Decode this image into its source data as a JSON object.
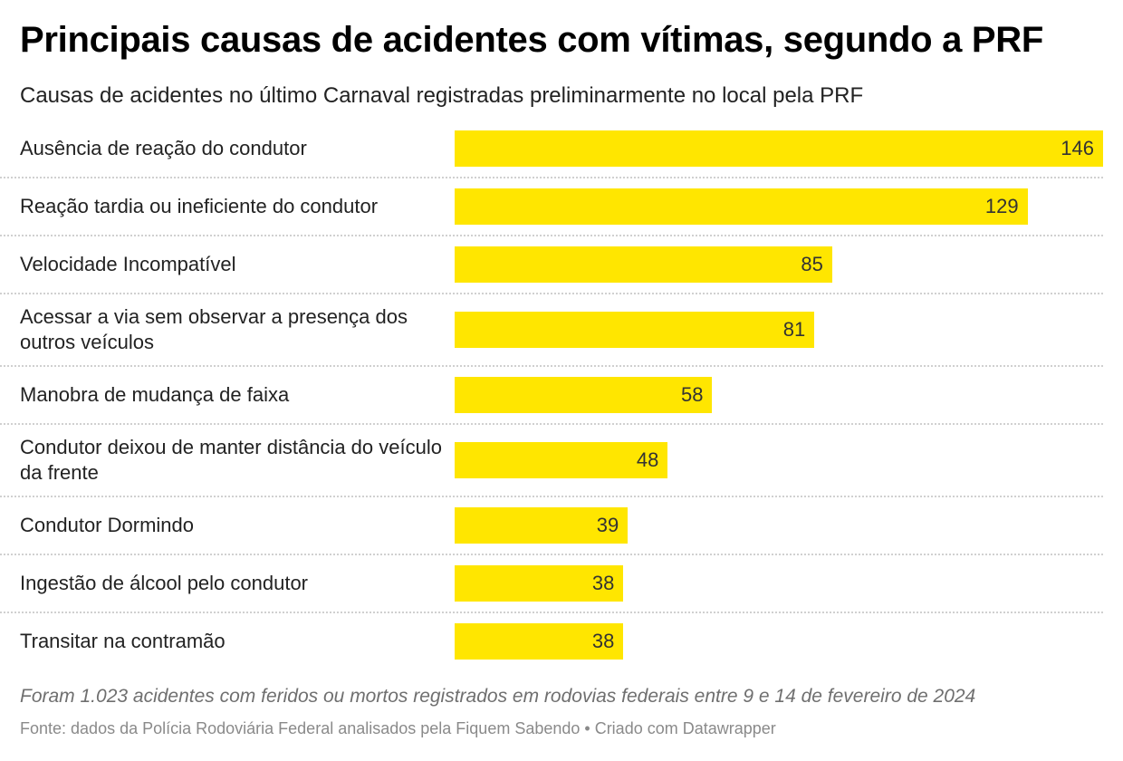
{
  "chart_data": {
    "type": "bar",
    "orientation": "horizontal",
    "title": "Principais causas de acidentes com vítimas, segundo a PRF",
    "subtitle": "Causas de acidentes no último Carnaval registradas preliminarmente no local pela PRF",
    "categories": [
      "Ausência de reação do condutor",
      "Reação tardia ou ineficiente do condutor",
      "Velocidade Incompatível",
      "Acessar a via sem observar a presença dos outros veículos",
      "Manobra de mudança de faixa",
      "Condutor deixou de manter distância do veículo da frente",
      "Condutor Dormindo",
      "Ingestão de álcool pelo condutor",
      "Transitar na contramão"
    ],
    "values": [
      146,
      129,
      85,
      81,
      58,
      48,
      39,
      38,
      38
    ],
    "xlim": [
      0,
      146
    ],
    "bar_color": "#ffe600",
    "grid": false,
    "data_labels": true
  },
  "footer": {
    "note": "Foram 1.023 acidentes com feridos ou mortos registrados em rodovias federais entre 9 e 14 de fevereiro de 2024",
    "source": "Fonte: dados da Polícia Rodoviária Federal analisados pela Fiquem Sabendo • Criado com Datawrapper"
  }
}
